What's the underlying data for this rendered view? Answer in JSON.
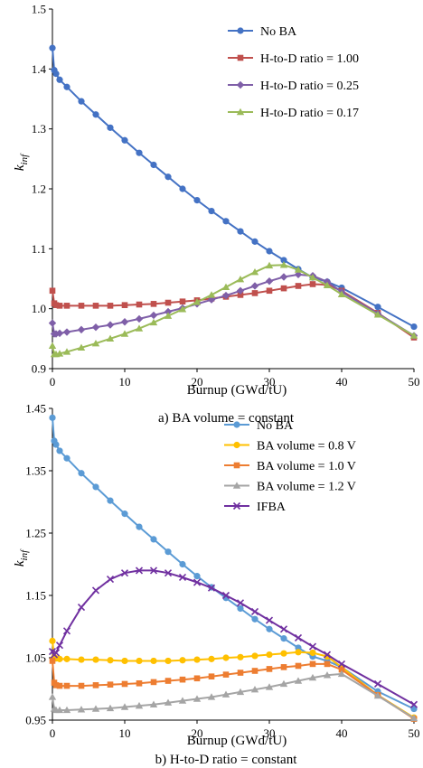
{
  "chart_data": [
    {
      "type": "line",
      "caption": "a) BA volume = constant",
      "xlabel": "Burnup (GWd/tU)",
      "ylabel": "k_inf",
      "ylabel_main": "k",
      "ylabel_sub": "inf",
      "xlim": [
        0,
        50
      ],
      "ylim": [
        0.9,
        1.5
      ],
      "xticks": [
        0,
        10,
        20,
        30,
        40,
        50
      ],
      "yticks": [
        0.9,
        1.0,
        1.1,
        1.2,
        1.3,
        1.4,
        1.5
      ],
      "ytick_labels": [
        "0.9",
        "1.0",
        "1.1",
        "1.2",
        "1.3",
        "1.4",
        "1.5"
      ],
      "grid": false,
      "legend_position": "top-right",
      "series": [
        {
          "name": "No BA",
          "color": "#4472C4",
          "marker": "circle",
          "x": [
            0,
            0.25,
            0.5,
            1,
            2,
            4,
            6,
            8,
            10,
            12,
            14,
            16,
            18,
            20,
            22,
            24,
            26,
            28,
            30,
            32,
            34,
            36,
            38,
            40,
            45,
            50
          ],
          "y": [
            1.435,
            1.398,
            1.392,
            1.382,
            1.37,
            1.346,
            1.324,
            1.302,
            1.281,
            1.26,
            1.24,
            1.22,
            1.2,
            1.181,
            1.163,
            1.146,
            1.129,
            1.112,
            1.096,
            1.081,
            1.066,
            1.052,
            1.045,
            1.035,
            1.003,
            0.97
          ]
        },
        {
          "name": "H-to-D ratio = 1.00",
          "color": "#C0504D",
          "marker": "square",
          "x": [
            0,
            0.25,
            0.5,
            1,
            2,
            4,
            6,
            8,
            10,
            12,
            14,
            16,
            18,
            20,
            22,
            24,
            26,
            28,
            30,
            32,
            34,
            36,
            38,
            40,
            45,
            50
          ],
          "y": [
            1.03,
            1.009,
            1.006,
            1.005,
            1.005,
            1.005,
            1.005,
            1.005,
            1.006,
            1.007,
            1.008,
            1.01,
            1.012,
            1.014,
            1.017,
            1.02,
            1.023,
            1.026,
            1.03,
            1.034,
            1.038,
            1.041,
            1.04,
            1.03,
            0.993,
            0.952
          ]
        },
        {
          "name": "H-to-D ratio = 0.25",
          "color": "#7F5FA8",
          "marker": "diamond",
          "x": [
            0,
            0.25,
            0.5,
            1,
            2,
            4,
            6,
            8,
            10,
            12,
            14,
            16,
            18,
            20,
            22,
            24,
            26,
            28,
            30,
            32,
            34,
            36,
            38,
            40,
            45,
            50
          ],
          "y": [
            0.976,
            0.958,
            0.958,
            0.959,
            0.961,
            0.965,
            0.969,
            0.973,
            0.978,
            0.983,
            0.989,
            0.995,
            1.001,
            1.008,
            1.015,
            1.022,
            1.03,
            1.038,
            1.046,
            1.053,
            1.057,
            1.055,
            1.045,
            1.028,
            0.992,
            0.955
          ]
        },
        {
          "name": "H-to-D ratio = 0.17",
          "color": "#9BBB59",
          "marker": "triangle",
          "x": [
            0,
            0.25,
            0.5,
            1,
            2,
            4,
            6,
            8,
            10,
            12,
            14,
            16,
            18,
            20,
            22,
            24,
            26,
            28,
            30,
            32,
            34,
            36,
            38,
            40,
            45,
            50
          ],
          "y": [
            0.938,
            0.924,
            0.924,
            0.925,
            0.928,
            0.935,
            0.942,
            0.95,
            0.958,
            0.967,
            0.977,
            0.988,
            0.999,
            1.011,
            1.023,
            1.036,
            1.049,
            1.061,
            1.072,
            1.073,
            1.065,
            1.052,
            1.039,
            1.024,
            0.99,
            0.955
          ]
        }
      ]
    },
    {
      "type": "line",
      "caption": "b) H-to-D ratio = constant",
      "xlabel": "Burnup (GWd/tU)",
      "ylabel": "k_inf",
      "ylabel_main": "k",
      "ylabel_sub": "inf",
      "xlim": [
        0,
        50
      ],
      "ylim": [
        0.95,
        1.45
      ],
      "xticks": [
        0,
        10,
        20,
        30,
        40,
        50
      ],
      "yticks": [
        0.95,
        1.05,
        1.15,
        1.25,
        1.35,
        1.45
      ],
      "ytick_labels": [
        "0.95",
        "1.05",
        "1.15",
        "1.25",
        "1.35",
        "1.45"
      ],
      "grid": false,
      "legend_position": "top-right",
      "series": [
        {
          "name": "No BA",
          "color": "#5B9BD5",
          "marker": "circle",
          "x": [
            0,
            0.25,
            0.5,
            1,
            2,
            4,
            6,
            8,
            10,
            12,
            14,
            16,
            18,
            20,
            22,
            24,
            26,
            28,
            30,
            32,
            34,
            36,
            38,
            40,
            45,
            50
          ],
          "y": [
            1.435,
            1.398,
            1.392,
            1.382,
            1.37,
            1.346,
            1.324,
            1.302,
            1.281,
            1.26,
            1.24,
            1.22,
            1.2,
            1.181,
            1.163,
            1.146,
            1.129,
            1.112,
            1.096,
            1.081,
            1.066,
            1.052,
            1.045,
            1.035,
            0.996,
            0.968
          ]
        },
        {
          "name": "BA volume = 0.8 V",
          "color": "#FFC000",
          "marker": "circle",
          "x": [
            0,
            0.25,
            0.5,
            1,
            2,
            4,
            6,
            8,
            10,
            12,
            14,
            16,
            18,
            20,
            22,
            24,
            26,
            28,
            30,
            32,
            34,
            36,
            38,
            40,
            45,
            50
          ],
          "y": [
            1.077,
            1.051,
            1.049,
            1.048,
            1.048,
            1.047,
            1.047,
            1.046,
            1.045,
            1.045,
            1.045,
            1.045,
            1.046,
            1.047,
            1.048,
            1.05,
            1.051,
            1.053,
            1.055,
            1.057,
            1.059,
            1.058,
            1.052,
            1.035,
            0.99,
            0.954
          ]
        },
        {
          "name": "BA volume = 1.0 V",
          "color": "#ED7D31",
          "marker": "square",
          "x": [
            0,
            0.25,
            0.5,
            1,
            2,
            4,
            6,
            8,
            10,
            12,
            14,
            16,
            18,
            20,
            22,
            24,
            26,
            28,
            30,
            32,
            34,
            36,
            38,
            40,
            45,
            50
          ],
          "y": [
            1.045,
            1.01,
            1.006,
            1.005,
            1.005,
            1.005,
            1.006,
            1.007,
            1.008,
            1.009,
            1.011,
            1.013,
            1.015,
            1.017,
            1.02,
            1.023,
            1.026,
            1.029,
            1.032,
            1.035,
            1.037,
            1.04,
            1.04,
            1.031,
            0.99,
            0.952
          ]
        },
        {
          "name": "BA volume = 1.2 V",
          "color": "#A5A5A5",
          "marker": "triangle",
          "x": [
            0,
            0.25,
            0.5,
            1,
            2,
            4,
            6,
            8,
            10,
            12,
            14,
            16,
            18,
            20,
            22,
            24,
            26,
            28,
            30,
            32,
            34,
            36,
            38,
            40,
            45,
            50
          ],
          "y": [
            0.987,
            0.968,
            0.966,
            0.966,
            0.966,
            0.967,
            0.968,
            0.969,
            0.971,
            0.973,
            0.975,
            0.978,
            0.981,
            0.984,
            0.987,
            0.991,
            0.995,
            0.999,
            1.003,
            1.008,
            1.013,
            1.018,
            1.022,
            1.024,
            0.989,
            0.953
          ]
        },
        {
          "name": "IFBA",
          "color": "#7030A0",
          "marker": "x",
          "x": [
            0,
            0.25,
            0.5,
            1,
            2,
            4,
            6,
            8,
            10,
            12,
            14,
            16,
            18,
            20,
            22,
            24,
            26,
            28,
            30,
            32,
            34,
            36,
            38,
            40,
            45,
            50
          ],
          "y": [
            1.06,
            1.055,
            1.058,
            1.07,
            1.093,
            1.131,
            1.158,
            1.176,
            1.186,
            1.19,
            1.19,
            1.186,
            1.179,
            1.171,
            1.162,
            1.15,
            1.138,
            1.124,
            1.11,
            1.096,
            1.082,
            1.068,
            1.055,
            1.04,
            1.008,
            0.975
          ]
        }
      ]
    }
  ]
}
